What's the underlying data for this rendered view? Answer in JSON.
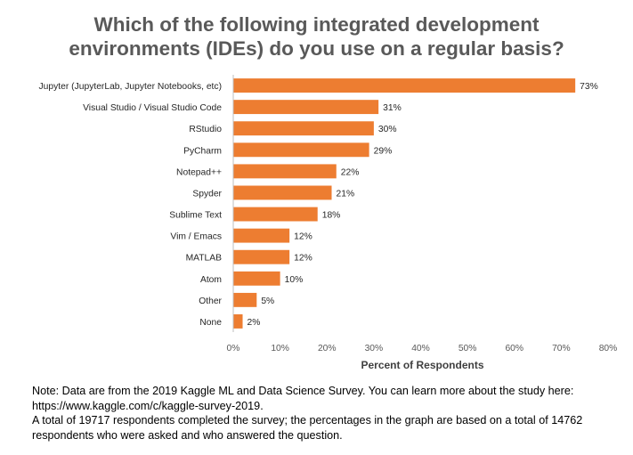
{
  "chart_data": {
    "type": "bar",
    "orientation": "horizontal",
    "title_lines": [
      "Which of the following integrated development",
      "environments (IDEs) do you use on a regular basis?"
    ],
    "categories": [
      "Jupyter (JupyterLab, Jupyter Notebooks, etc)",
      "Visual Studio / Visual Studio Code",
      "RStudio",
      "PyCharm",
      "Notepad++",
      "Spyder",
      "Sublime Text",
      "Vim / Emacs",
      "MATLAB",
      "Atom",
      "Other",
      "None"
    ],
    "values": [
      73,
      31,
      30,
      29,
      22,
      21,
      18,
      12,
      12,
      10,
      5,
      2
    ],
    "data_labels": [
      "73%",
      "31%",
      "30%",
      "29%",
      "22%",
      "21%",
      "18%",
      "12%",
      "12%",
      "10%",
      "5%",
      "2%"
    ],
    "xlabel": "Percent of Respondents",
    "xlim": [
      0,
      80
    ],
    "xticks": [
      "0%",
      "10%",
      "20%",
      "30%",
      "40%",
      "50%",
      "60%",
      "70%",
      "80%"
    ],
    "bar_color": "#ED7D31",
    "grid": false
  },
  "note": {
    "lines": [
      "Note: Data are from the 2019 Kaggle ML and Data Science Survey. You can learn more about the study here:",
      "https://www.kaggle.com/c/kaggle-survey-2019.",
      "A total of 19717 respondents completed the survey; the percentages in the graph are based on a total of 14762",
      "respondents who were asked and who answered the question."
    ]
  }
}
